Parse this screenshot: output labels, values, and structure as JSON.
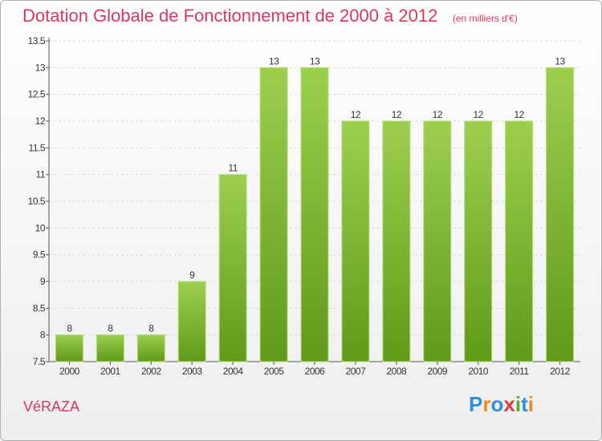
{
  "header": {
    "title": "Dotation Globale de Fonctionnement de 2000 à 2012",
    "subtitle": "(en milliers d'€)"
  },
  "footer": {
    "commune": "VéRAZA",
    "logo_text": "Proxiti",
    "logo_letters": [
      {
        "ch": "P",
        "color": "#2f8fd8"
      },
      {
        "ch": "r",
        "color": "#f08a1c"
      },
      {
        "ch": "o",
        "color": "#2f8fd8"
      },
      {
        "ch": "x",
        "color": "#e33a3a"
      },
      {
        "ch": "i",
        "color": "#5aa832"
      },
      {
        "ch": "t",
        "color": "#2f8fd8"
      },
      {
        "ch": "i",
        "color": "#f08a1c"
      }
    ]
  },
  "colors": {
    "bar_top": "#9dcf4f",
    "bar_bottom": "#5f9a18",
    "text": "#333333",
    "accent": "#d9375e"
  },
  "chart_data": {
    "type": "bar",
    "categories": [
      "2000",
      "2001",
      "2002",
      "2003",
      "2004",
      "2005",
      "2006",
      "2007",
      "2008",
      "2009",
      "2010",
      "2011",
      "2012"
    ],
    "values": [
      8,
      8,
      8,
      9,
      11,
      13,
      13,
      12,
      12,
      12,
      12,
      12,
      13
    ],
    "value_labels": [
      "8",
      "8",
      "8",
      "9",
      "11",
      "13",
      "13",
      "12",
      "12",
      "12",
      "12",
      "12",
      "13"
    ],
    "ylim": [
      7.5,
      13.5
    ],
    "yticks": [
      7.5,
      8,
      8.5,
      9,
      9.5,
      10,
      10.5,
      11,
      11.5,
      12,
      12.5,
      13,
      13.5
    ],
    "ytick_labels": [
      "7.5",
      "8",
      "8.5",
      "9",
      "9.5",
      "10",
      "10.5",
      "11",
      "11.5",
      "12",
      "12.5",
      "13",
      "13.5"
    ],
    "grid": true,
    "title": "Dotation Globale de Fonctionnement de 2000 à 2012",
    "xlabel": "",
    "ylabel": ""
  }
}
